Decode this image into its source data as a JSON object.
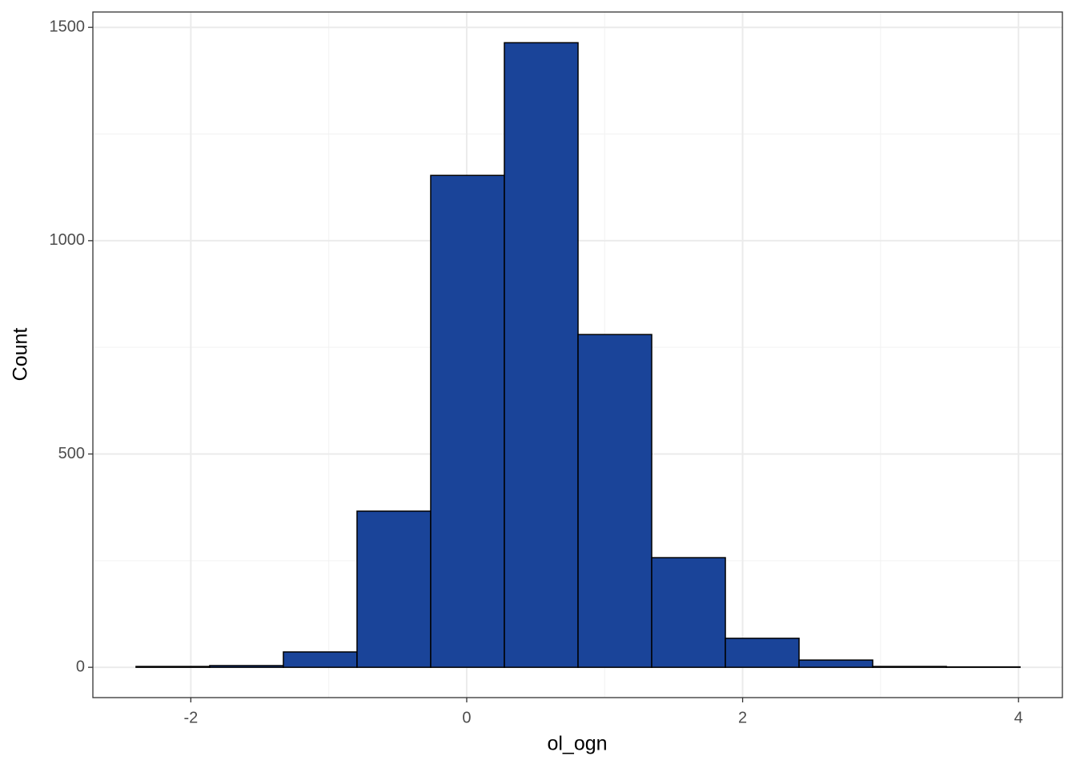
{
  "chart_data": {
    "type": "histogram",
    "x_label": "ol_ogn",
    "y_label": "Count",
    "bins": [
      -2.397,
      -1.863,
      -1.329,
      -0.795,
      -0.261,
      0.273,
      0.807,
      1.341,
      1.875,
      2.409,
      2.943,
      3.477,
      4.011
    ],
    "counts": [
      2,
      4,
      36,
      366,
      1153,
      1464,
      780,
      257,
      68,
      17,
      2,
      1
    ],
    "color": "#1a4499",
    "edge_color": "#000000",
    "xlim": [
      -2.71,
      4.318
    ],
    "ylim": [
      -71,
      1536
    ],
    "xticks": [
      -2,
      0,
      2,
      4
    ],
    "yticks": [
      0,
      500,
      1000,
      1500
    ],
    "grid": true,
    "minor_grid": true
  }
}
